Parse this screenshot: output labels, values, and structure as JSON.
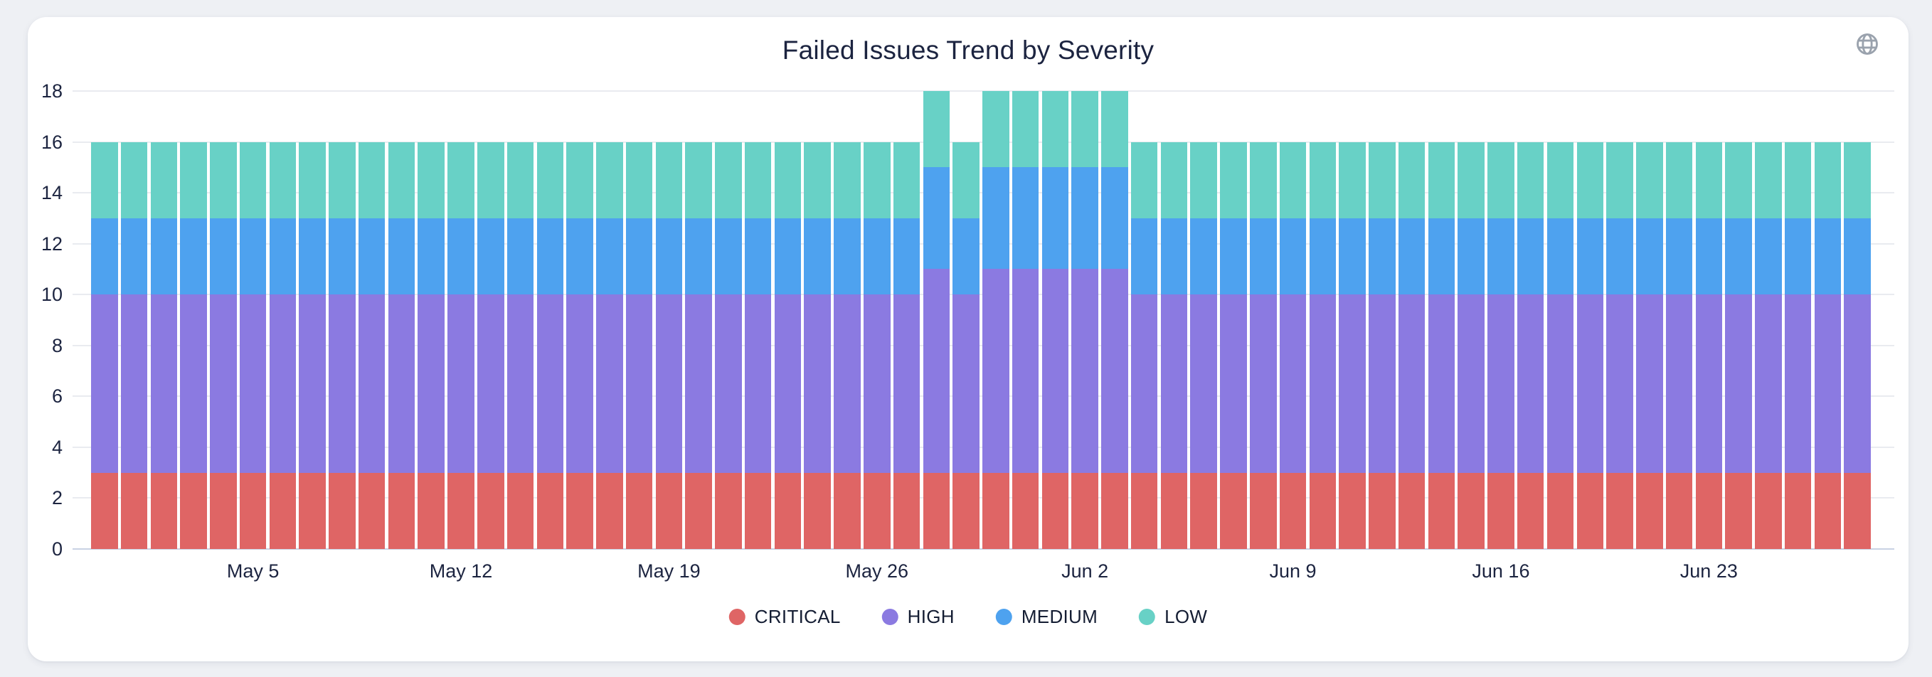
{
  "page": {
    "background": "#eef0f4"
  },
  "header": {
    "title": "Failed Issues Trend by Severity"
  },
  "icons": {
    "globe": "globe-icon",
    "globe_color": "#9aa2ad"
  },
  "colors": {
    "critical": "#df6565",
    "high": "#8b7ae1",
    "medium": "#4ea2ef",
    "low": "#68d1c6",
    "text": "#1c2440",
    "gridline": "#e9ebf0",
    "axis_baseline": "#c9d2e4",
    "card_background": "#ffffff"
  },
  "chart_data": {
    "type": "bar",
    "stacked": true,
    "title": "Failed Issues Trend by Severity",
    "xlabel": "",
    "ylabel": "",
    "ylim": [
      0,
      18
    ],
    "grid": true,
    "legend_position": "bottom",
    "x": [
      "Apr 30",
      "May 1",
      "May 2",
      "May 3",
      "May 4",
      "May 5",
      "May 6",
      "May 7",
      "May 8",
      "May 9",
      "May 10",
      "May 11",
      "May 12",
      "May 13",
      "May 14",
      "May 15",
      "May 16",
      "May 17",
      "May 18",
      "May 19",
      "May 20",
      "May 21",
      "May 22",
      "May 23",
      "May 24",
      "May 25",
      "May 26",
      "May 27",
      "May 28",
      "May 29",
      "May 30",
      "May 31",
      "Jun 1",
      "Jun 2",
      "Jun 3",
      "Jun 4",
      "Jun 5",
      "Jun 6",
      "Jun 7",
      "Jun 8",
      "Jun 9",
      "Jun 10",
      "Jun 11",
      "Jun 12",
      "Jun 13",
      "Jun 14",
      "Jun 15",
      "Jun 16",
      "Jun 17",
      "Jun 18",
      "Jun 19",
      "Jun 20",
      "Jun 21",
      "Jun 22",
      "Jun 23",
      "Jun 24",
      "Jun 25",
      "Jun 26",
      "Jun 27",
      "Jun 28"
    ],
    "series": [
      {
        "name": "CRITICAL",
        "color": "#df6565",
        "values": [
          3,
          3,
          3,
          3,
          3,
          3,
          3,
          3,
          3,
          3,
          3,
          3,
          3,
          3,
          3,
          3,
          3,
          3,
          3,
          3,
          3,
          3,
          3,
          3,
          3,
          3,
          3,
          3,
          3,
          3,
          3,
          3,
          3,
          3,
          3,
          3,
          3,
          3,
          3,
          3,
          3,
          3,
          3,
          3,
          3,
          3,
          3,
          3,
          3,
          3,
          3,
          3,
          3,
          3,
          3,
          3,
          3,
          3,
          3,
          3
        ]
      },
      {
        "name": "HIGH",
        "color": "#8b7ae1",
        "values": [
          7,
          7,
          7,
          7,
          7,
          7,
          7,
          7,
          7,
          7,
          7,
          7,
          7,
          7,
          7,
          7,
          7,
          7,
          7,
          7,
          7,
          7,
          7,
          7,
          7,
          7,
          7,
          7,
          8,
          7,
          8,
          8,
          8,
          8,
          8,
          7,
          7,
          7,
          7,
          7,
          7,
          7,
          7,
          7,
          7,
          7,
          7,
          7,
          7,
          7,
          7,
          7,
          7,
          7,
          7,
          7,
          7,
          7,
          7,
          7
        ]
      },
      {
        "name": "MEDIUM",
        "color": "#4ea2ef",
        "values": [
          3,
          3,
          3,
          3,
          3,
          3,
          3,
          3,
          3,
          3,
          3,
          3,
          3,
          3,
          3,
          3,
          3,
          3,
          3,
          3,
          3,
          3,
          3,
          3,
          3,
          3,
          3,
          3,
          4,
          3,
          4,
          4,
          4,
          4,
          4,
          3,
          3,
          3,
          3,
          3,
          3,
          3,
          3,
          3,
          3,
          3,
          3,
          3,
          3,
          3,
          3,
          3,
          3,
          3,
          3,
          3,
          3,
          3,
          3,
          3
        ]
      },
      {
        "name": "LOW",
        "color": "#68d1c6",
        "values": [
          3,
          3,
          3,
          3,
          3,
          3,
          3,
          3,
          3,
          3,
          3,
          3,
          3,
          3,
          3,
          3,
          3,
          3,
          3,
          3,
          3,
          3,
          3,
          3,
          3,
          3,
          3,
          3,
          3,
          3,
          3,
          3,
          3,
          3,
          3,
          3,
          3,
          3,
          3,
          3,
          3,
          3,
          3,
          3,
          3,
          3,
          3,
          3,
          3,
          3,
          3,
          3,
          3,
          3,
          3,
          3,
          3,
          3,
          3,
          3
        ]
      }
    ],
    "yticks": [
      0,
      2,
      4,
      6,
      8,
      10,
      12,
      14,
      16,
      18
    ],
    "xticks": [
      {
        "index": 5,
        "label": "May 5"
      },
      {
        "index": 12,
        "label": "May 12"
      },
      {
        "index": 19,
        "label": "May 19"
      },
      {
        "index": 26,
        "label": "May 26"
      },
      {
        "index": 33,
        "label": "Jun 2"
      },
      {
        "index": 40,
        "label": "Jun 9"
      },
      {
        "index": 47,
        "label": "Jun 16"
      },
      {
        "index": 54,
        "label": "Jun 23"
      }
    ],
    "legend": [
      "CRITICAL",
      "HIGH",
      "MEDIUM",
      "LOW"
    ]
  }
}
